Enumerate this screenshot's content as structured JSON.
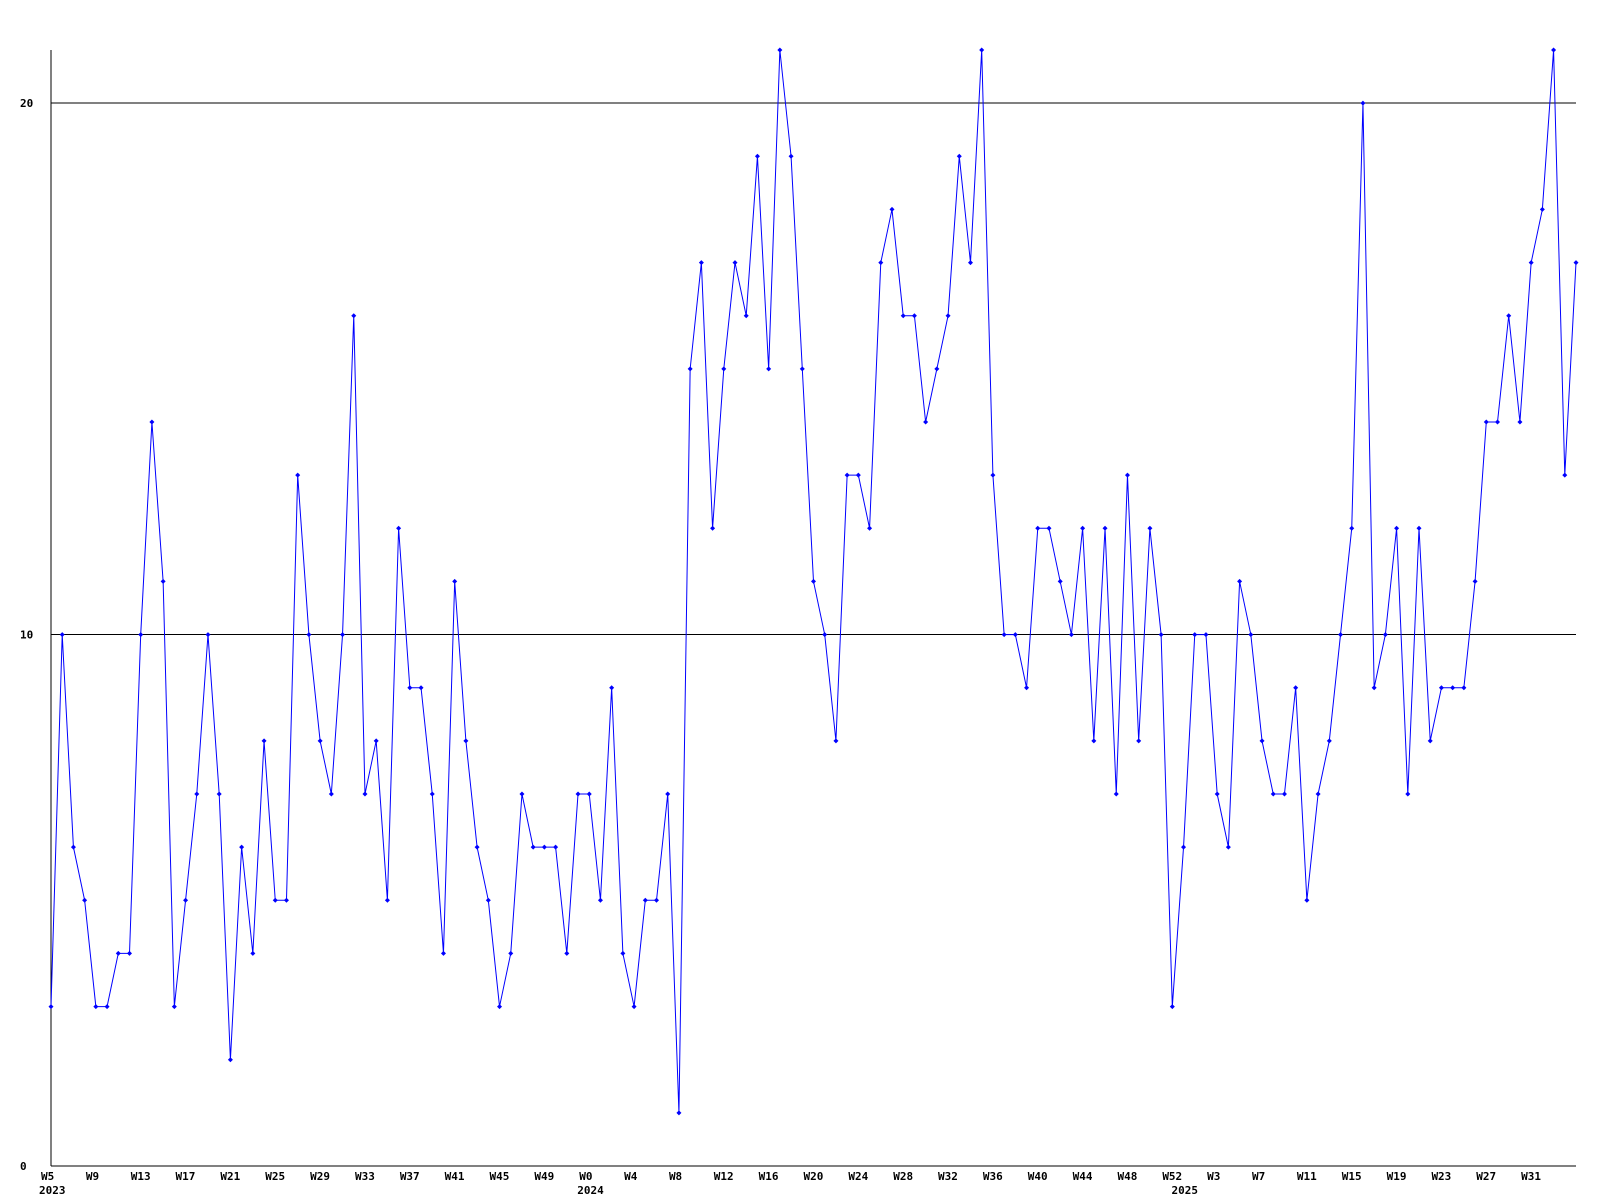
{
  "colors": {
    "line": "#0000ff",
    "marker": "#0000ff",
    "axis": "#000000",
    "grid": "#000000",
    "background": "#ffffff"
  },
  "chart_data": {
    "type": "line",
    "title": "",
    "xlabel": "",
    "ylabel": "",
    "ylim": [
      0,
      21
    ],
    "grid": true,
    "legend": "none",
    "y_ticks": [
      {
        "value": 0,
        "label": "0"
      },
      {
        "value": 10,
        "label": "10"
      },
      {
        "value": 20,
        "label": "20"
      }
    ],
    "x_ticks": [
      {
        "index": 0,
        "label": "W5"
      },
      {
        "index": 4,
        "label": "W9"
      },
      {
        "index": 8,
        "label": "W13"
      },
      {
        "index": 12,
        "label": "W17"
      },
      {
        "index": 16,
        "label": "W21"
      },
      {
        "index": 20,
        "label": "W25"
      },
      {
        "index": 24,
        "label": "W29"
      },
      {
        "index": 28,
        "label": "W33"
      },
      {
        "index": 32,
        "label": "W37"
      },
      {
        "index": 36,
        "label": "W41"
      },
      {
        "index": 40,
        "label": "W45"
      },
      {
        "index": 44,
        "label": "W49"
      },
      {
        "index": 48,
        "label": "W0"
      },
      {
        "index": 52,
        "label": "W4"
      },
      {
        "index": 56,
        "label": "W8"
      },
      {
        "index": 60,
        "label": "W12"
      },
      {
        "index": 64,
        "label": "W16"
      },
      {
        "index": 68,
        "label": "W20"
      },
      {
        "index": 72,
        "label": "W24"
      },
      {
        "index": 76,
        "label": "W28"
      },
      {
        "index": 80,
        "label": "W32"
      },
      {
        "index": 84,
        "label": "W36"
      },
      {
        "index": 88,
        "label": "W40"
      },
      {
        "index": 92,
        "label": "W44"
      },
      {
        "index": 96,
        "label": "W48"
      },
      {
        "index": 100,
        "label": "W52"
      },
      {
        "index": 104,
        "label": "W3"
      },
      {
        "index": 108,
        "label": "W7"
      },
      {
        "index": 112,
        "label": "W11"
      },
      {
        "index": 116,
        "label": "W15"
      },
      {
        "index": 120,
        "label": "W19"
      },
      {
        "index": 124,
        "label": "W23"
      },
      {
        "index": 128,
        "label": "W27"
      },
      {
        "index": 132,
        "label": "W31"
      }
    ],
    "year_labels": [
      {
        "index": 0,
        "label": "2023"
      },
      {
        "index": 48,
        "label": "2024"
      },
      {
        "index": 101,
        "label": "2025"
      }
    ],
    "series": [
      {
        "values": [
          3,
          10,
          6,
          5,
          3,
          3,
          4,
          4,
          10,
          14,
          11,
          3,
          5,
          7,
          10,
          7,
          2,
          6,
          4,
          8,
          5,
          5,
          13,
          10,
          8,
          7,
          10,
          16,
          7,
          8,
          5,
          12,
          9,
          9,
          7,
          4,
          11,
          8,
          6,
          5,
          3,
          4,
          7,
          6,
          6,
          6,
          4,
          7,
          7,
          5,
          9,
          4,
          3,
          5,
          5,
          7,
          1,
          15,
          17,
          12,
          15,
          17,
          16,
          19,
          15,
          21,
          19,
          15,
          11,
          10,
          8,
          13,
          13,
          12,
          17,
          18,
          16,
          16,
          14,
          15,
          16,
          19,
          17,
          21,
          13,
          10,
          10,
          9,
          12,
          12,
          11,
          10,
          12,
          8,
          12,
          7,
          13,
          8,
          12,
          10,
          3,
          6,
          10,
          10,
          7,
          6,
          11,
          10,
          8,
          7,
          7,
          9,
          5,
          7,
          8,
          10,
          12,
          20,
          9,
          10,
          12,
          7,
          12,
          8,
          9,
          9,
          9,
          11,
          14,
          14,
          16,
          14,
          17,
          18,
          21,
          13,
          17
        ]
      }
    ]
  }
}
